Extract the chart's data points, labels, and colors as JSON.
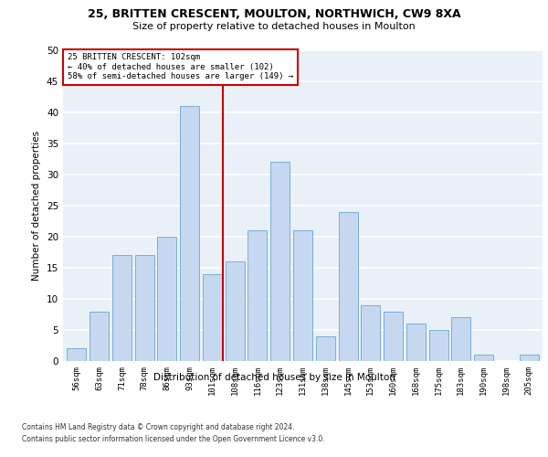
{
  "title_line1": "25, BRITTEN CRESCENT, MOULTON, NORTHWICH, CW9 8XA",
  "title_line2": "Size of property relative to detached houses in Moulton",
  "xlabel": "Distribution of detached houses by size in Moulton",
  "ylabel": "Number of detached properties",
  "categories": [
    "56sqm",
    "63sqm",
    "71sqm",
    "78sqm",
    "86sqm",
    "93sqm",
    "101sqm",
    "108sqm",
    "116sqm",
    "123sqm",
    "131sqm",
    "138sqm",
    "145sqm",
    "153sqm",
    "160sqm",
    "168sqm",
    "175sqm",
    "183sqm",
    "190sqm",
    "198sqm",
    "205sqm"
  ],
  "values": [
    2,
    8,
    17,
    17,
    20,
    41,
    14,
    16,
    21,
    32,
    21,
    4,
    24,
    9,
    8,
    6,
    5,
    7,
    1,
    0,
    1
  ],
  "bar_color": "#c5d8f0",
  "bar_edge_color": "#7aadd4",
  "subject_line_color": "#cc0000",
  "annotation_text": "25 BRITTEN CRESCENT: 102sqm\n← 40% of detached houses are smaller (102)\n58% of semi-detached houses are larger (149) →",
  "annotation_box_color": "#cc0000",
  "background_color": "#eaf0f8",
  "grid_color": "#ffffff",
  "ylim": [
    0,
    50
  ],
  "yticks": [
    0,
    5,
    10,
    15,
    20,
    25,
    30,
    35,
    40,
    45,
    50
  ],
  "footnote1": "Contains HM Land Registry data © Crown copyright and database right 2024.",
  "footnote2": "Contains public sector information licensed under the Open Government Licence v3.0."
}
